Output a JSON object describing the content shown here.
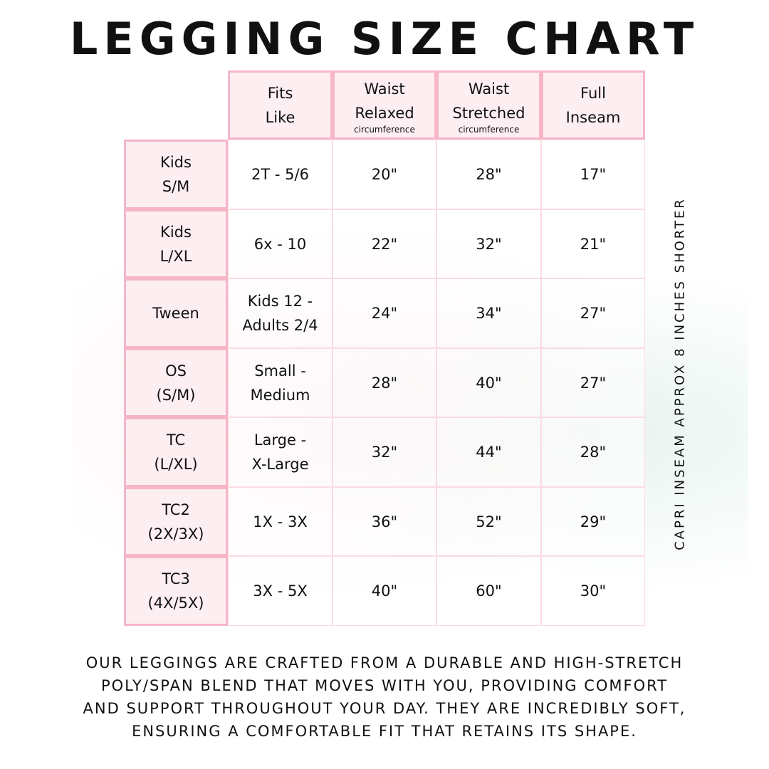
{
  "title": "LEGGING SIZE CHART",
  "columns": [
    {
      "label": "Fits\nLike",
      "sub": ""
    },
    {
      "label": "Waist\nRelaxed",
      "sub": "circumference"
    },
    {
      "label": "Waist\nStretched",
      "sub": "circumference"
    },
    {
      "label": "Full\nInseam",
      "sub": ""
    }
  ],
  "rows": [
    {
      "size": "Kids\nS/M",
      "values": [
        "2T - 5/6",
        "20\"",
        "28\"",
        "17\""
      ]
    },
    {
      "size": "Kids\nL/XL",
      "values": [
        "6x - 10",
        "22\"",
        "32\"",
        "21\""
      ]
    },
    {
      "size": "Tween",
      "values": [
        "Kids 12 -\nAdults 2/4",
        "24\"",
        "34\"",
        "27\""
      ]
    },
    {
      "size": "OS\n(S/M)",
      "values": [
        "Small -\nMedium",
        "28\"",
        "40\"",
        "27\""
      ]
    },
    {
      "size": "TC\n(L/XL)",
      "values": [
        "Large -\nX-Large",
        "32\"",
        "44\"",
        "28\""
      ]
    },
    {
      "size": "TC2\n(2X/3X)",
      "values": [
        "1X - 3X",
        "36\"",
        "52\"",
        "29\""
      ]
    },
    {
      "size": "TC3\n(4X/5X)",
      "values": [
        "3X - 5X",
        "40\"",
        "60\"",
        "30\""
      ]
    }
  ],
  "side_note": "CAPRI INSEAM APPROX 8 INCHES SHORTER",
  "footer": "Our leggings are crafted from a durable and high-stretch\npoly/span blend that moves with you, providing comfort\nand support throughout your day. They are incredibly soft,\nensuring a comfortable fit that retains its shape.",
  "colors": {
    "border": "#f6b6c8",
    "header_fill": "#fdeef2"
  }
}
